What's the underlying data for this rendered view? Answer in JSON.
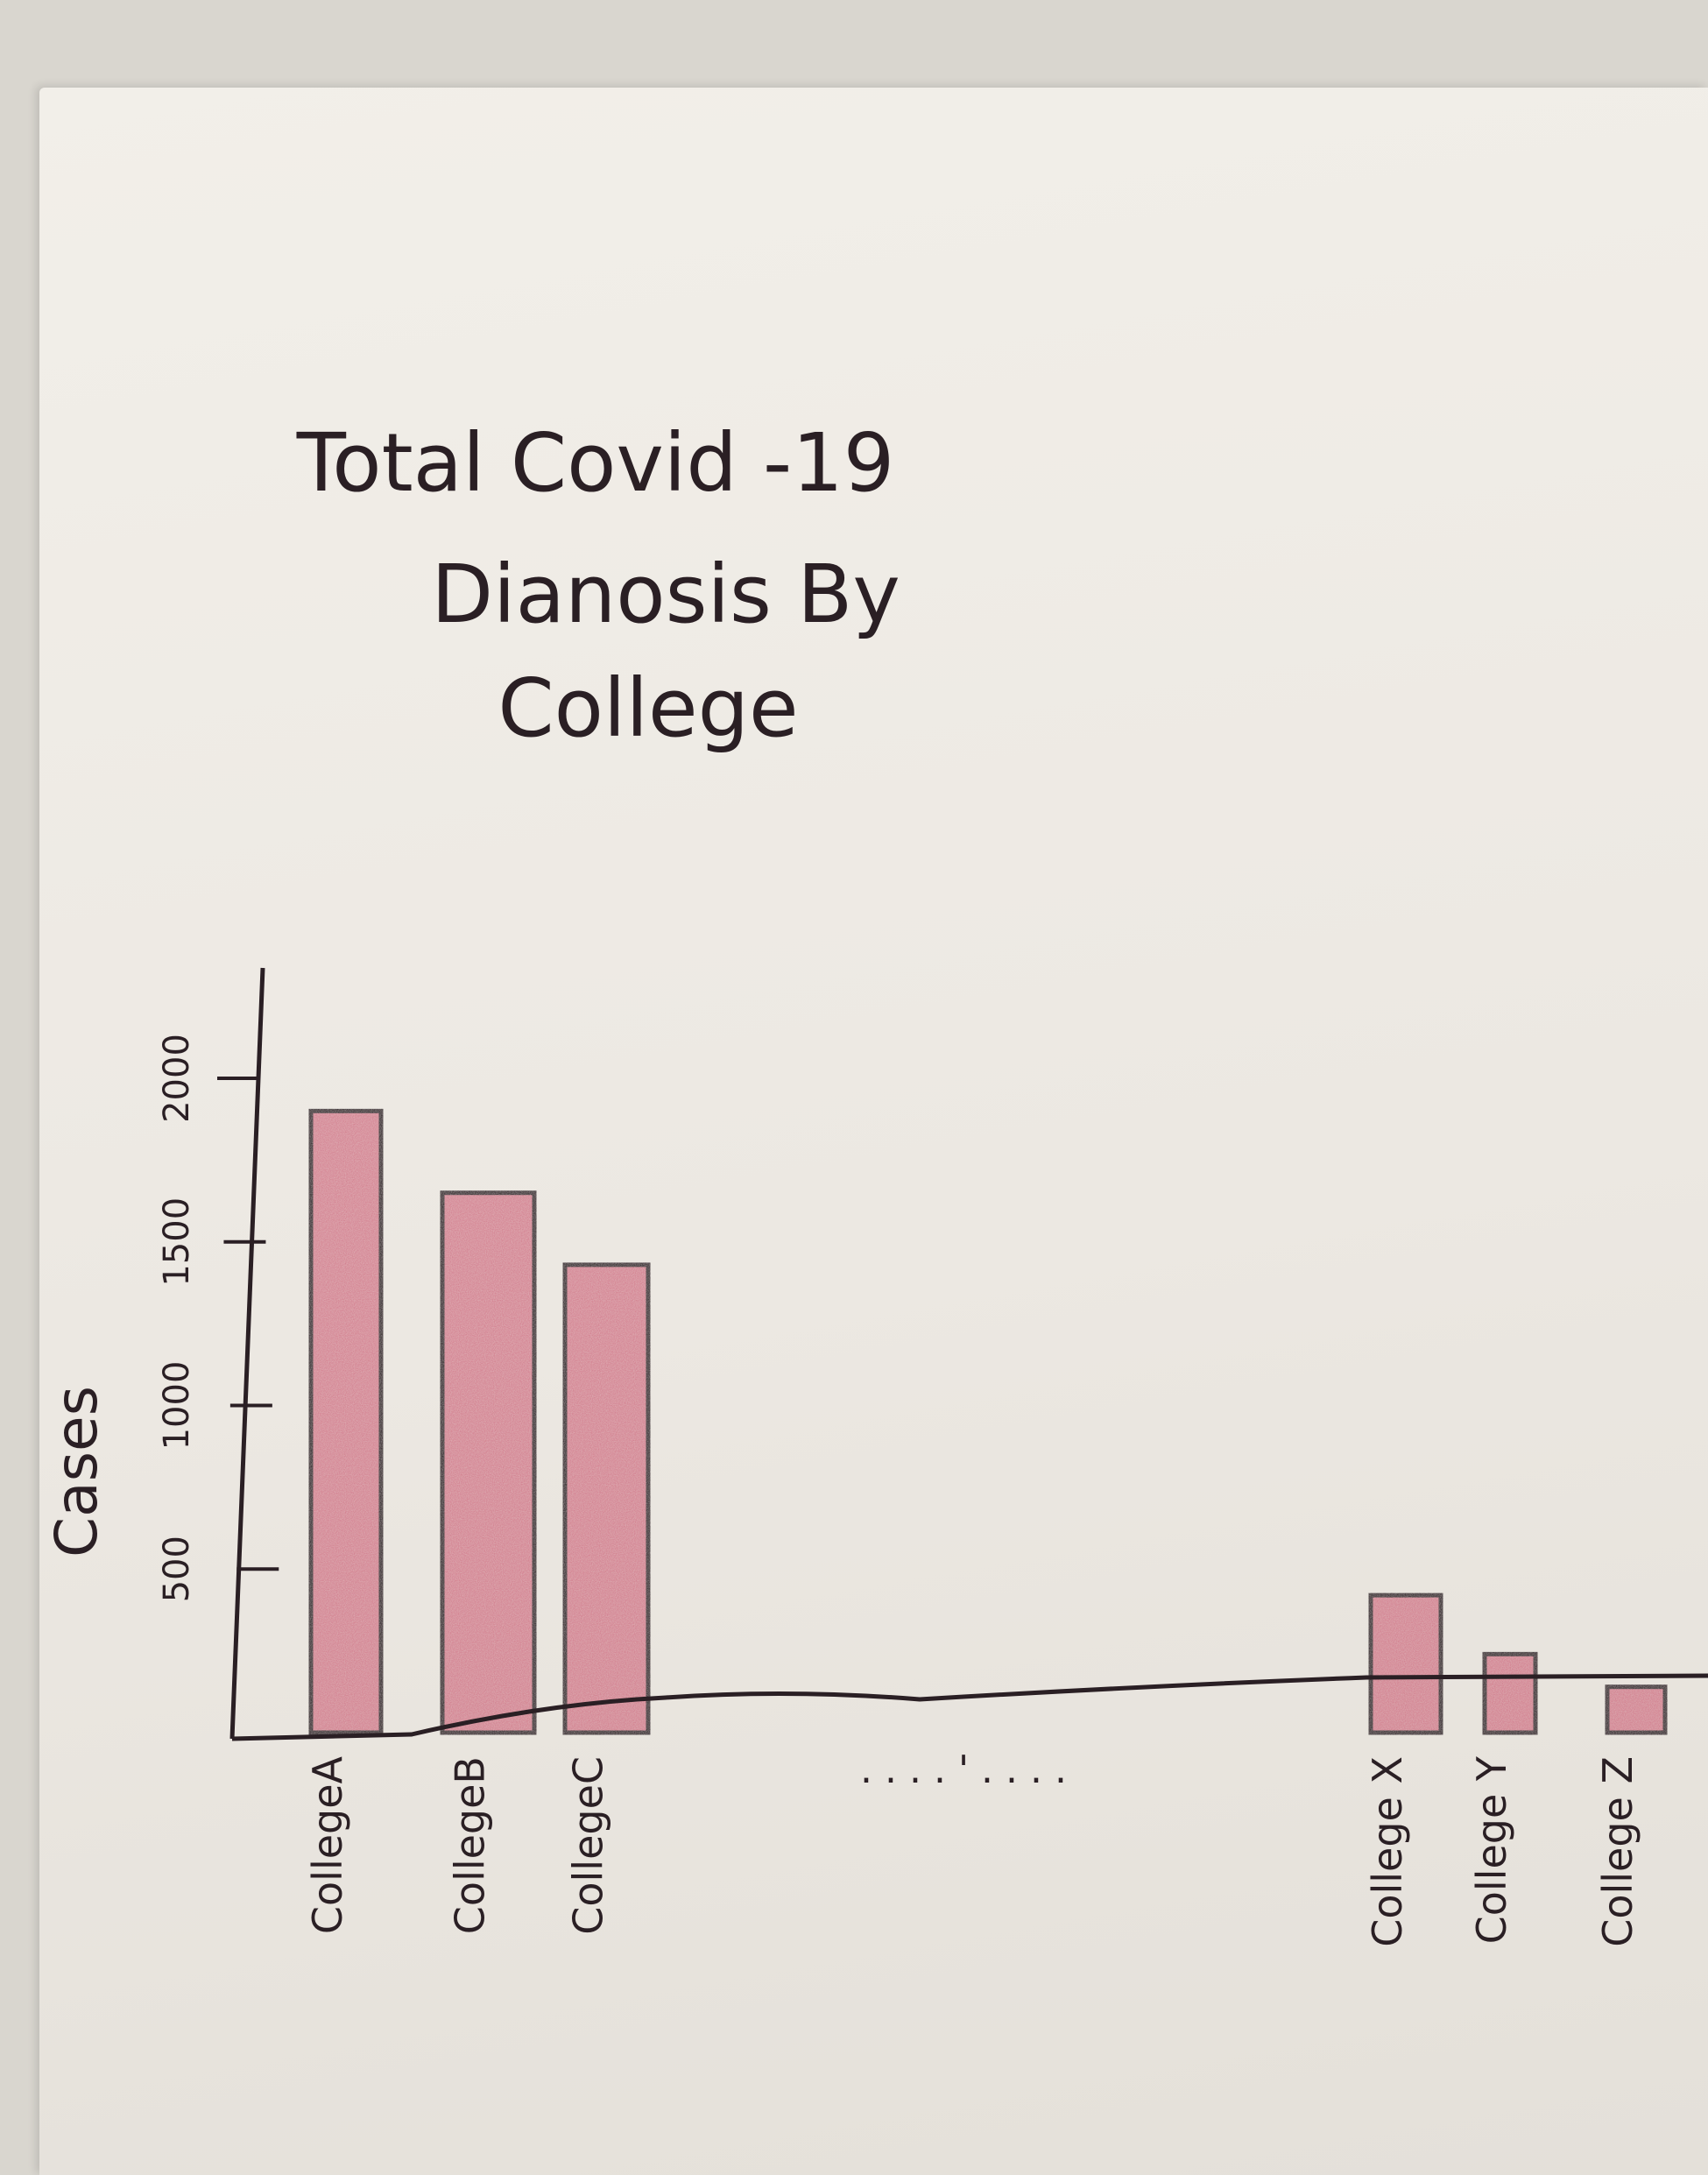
{
  "chart_data": {
    "type": "bar",
    "title_lines": [
      "Total Covid -19",
      "Dianosis By",
      "College"
    ],
    "ylabel": "Cases",
    "xlabel": "",
    "y_ticks": [
      500,
      1000,
      1500,
      2000
    ],
    "ylim": [
      0,
      2250
    ],
    "grid": false,
    "categories": [
      "CollegeA",
      "CollegeB",
      "CollegeC",
      "College X",
      "College Y",
      "College Z"
    ],
    "values": [
      1900,
      1650,
      1430,
      420,
      240,
      140
    ],
    "ellipsis": ". . . . ' . . . .",
    "bar_color": "#c9566e",
    "outline_color": "#2a1f24"
  }
}
